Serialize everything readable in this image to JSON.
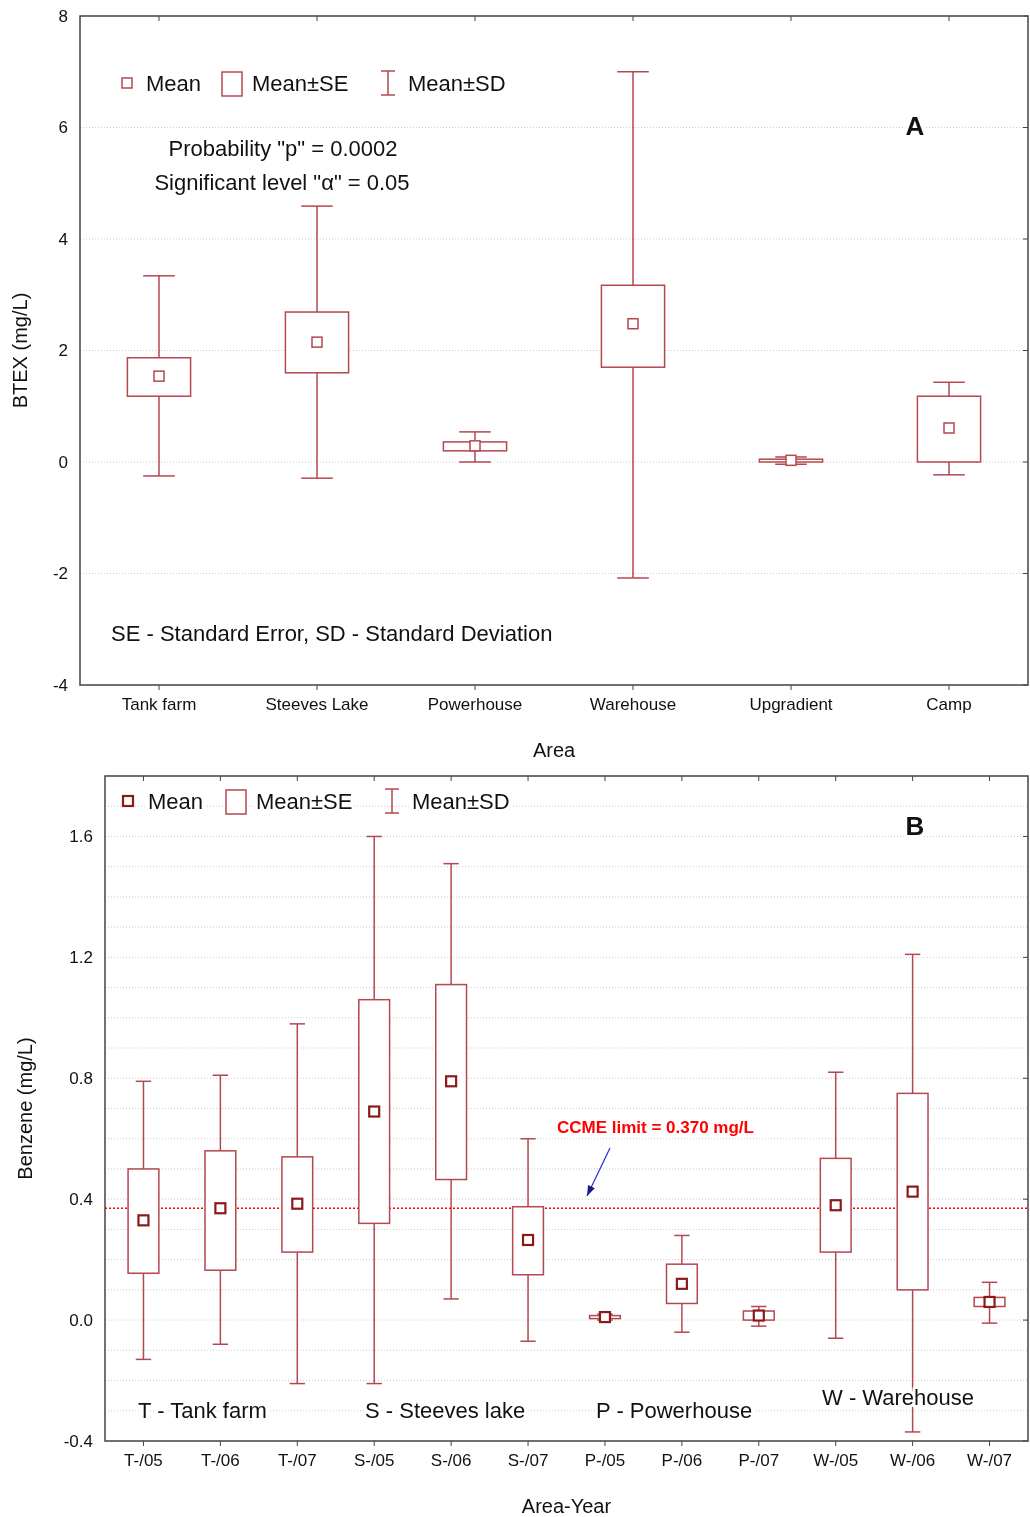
{
  "chart_data": [
    {
      "type": "box",
      "xlabel": "Area",
      "ylabel": "BTEX (mg/L)",
      "categories": [
        "Tank farm",
        "Steeves Lake",
        "Powerhouse",
        "Warehouse",
        "Upgradient",
        "Camp"
      ],
      "color": "#b5474f",
      "ylim": [
        -4,
        8
      ],
      "yticks": [
        -4,
        -2,
        0,
        2,
        4,
        6,
        8
      ],
      "grid": "y",
      "boxes": [
        {
          "low": -0.25,
          "q1": 1.18,
          "q3": 1.87,
          "high": 3.34,
          "mean": 1.54
        },
        {
          "low": -0.29,
          "q1": 1.6,
          "q3": 2.69,
          "high": 4.59,
          "mean": 2.15
        },
        {
          "low": 0.0,
          "q1": 0.2,
          "q3": 0.36,
          "high": 0.54,
          "mean": 0.29
        },
        {
          "low": -2.08,
          "q1": 1.7,
          "q3": 3.17,
          "high": 7.0,
          "mean": 2.48
        },
        {
          "low": -0.04,
          "q1": 0.0,
          "q3": 0.05,
          "high": 0.09,
          "mean": 0.03
        },
        {
          "low": -0.23,
          "q1": 0.0,
          "q3": 1.18,
          "high": 1.43,
          "mean": 0.61
        }
      ],
      "annotations": [
        "Mean",
        "Mean±SE",
        "Mean±SD",
        "Probability \"p\" = 0.0002",
        "Significant level \"α\" = 0.05",
        "A",
        "SE - Standard Error,  SD - Standard Deviation"
      ]
    },
    {
      "type": "box",
      "xlabel": "Area-Year",
      "ylabel": "Benzene (mg/L)",
      "categories": [
        "T-/05",
        "T-/06",
        "T-/07",
        "S-/05",
        "S-/06",
        "S-/07",
        "P-/05",
        "P-/06",
        "P-/07",
        "W-/05",
        "W-/06",
        "W-/07"
      ],
      "color": "#b5474f",
      "ylim": [
        -0.4,
        1.8
      ],
      "yticks": [
        -0.4,
        {
          "value": -0.3,
          "label": null
        },
        {
          "value": -0.2,
          "label": null
        },
        {
          "value": -0.1,
          "label": null
        },
        {
          "value": 0,
          "label": "0.0"
        },
        {
          "value": 0.1,
          "label": null
        },
        {
          "value": 0.2,
          "label": null
        },
        {
          "value": 0.3,
          "label": null
        },
        0.4,
        {
          "value": 0.5,
          "label": null
        },
        {
          "value": 0.6,
          "label": null
        },
        {
          "value": 0.7,
          "label": null
        },
        0.8,
        {
          "value": 0.9,
          "label": null
        },
        {
          "value": 1.0,
          "label": null
        },
        {
          "value": 1.1,
          "label": null
        },
        1.2,
        {
          "value": 1.3,
          "label": null
        },
        {
          "value": 1.4,
          "label": null
        },
        {
          "value": 1.5,
          "label": null
        },
        1.6,
        {
          "value": 1.7,
          "label": null
        },
        {
          "value": 1.8,
          "label": null
        }
      ],
      "grid": "y",
      "boxes": [
        {
          "low": -0.13,
          "q1": 0.155,
          "q3": 0.5,
          "high": 0.79,
          "mean": 0.33
        },
        {
          "low": -0.08,
          "q1": 0.165,
          "q3": 0.56,
          "high": 0.81,
          "mean": 0.37
        },
        {
          "low": -0.21,
          "q1": 0.225,
          "q3": 0.54,
          "high": 0.98,
          "mean": 0.385
        },
        {
          "low": -0.21,
          "q1": 0.32,
          "q3": 1.06,
          "high": 1.6,
          "mean": 0.69
        },
        {
          "low": 0.07,
          "q1": 0.465,
          "q3": 1.11,
          "high": 1.51,
          "mean": 0.79
        },
        {
          "low": -0.07,
          "q1": 0.15,
          "q3": 0.375,
          "high": 0.6,
          "mean": 0.265
        },
        {
          "low": 0.0,
          "q1": 0.005,
          "q3": 0.015,
          "high": 0.02,
          "mean": 0.01
        },
        {
          "low": -0.04,
          "q1": 0.055,
          "q3": 0.185,
          "high": 0.28,
          "mean": 0.12
        },
        {
          "low": -0.02,
          "q1": 0.0,
          "q3": 0.03,
          "high": 0.045,
          "mean": 0.015
        },
        {
          "low": -0.06,
          "q1": 0.225,
          "q3": 0.535,
          "high": 0.82,
          "mean": 0.38
        },
        {
          "low": -0.37,
          "q1": 0.1,
          "q3": 0.75,
          "high": 1.21,
          "mean": 0.425
        },
        {
          "low": -0.01,
          "q1": 0.045,
          "q3": 0.075,
          "high": 0.125,
          "mean": 0.06
        }
      ],
      "ref_lines": [
        {
          "axis": "y",
          "value": 0.37,
          "label": "CCME limit = 0.370 mg/L",
          "color": "#ff0000",
          "line_style": "dotted"
        }
      ],
      "annotations": [
        "Mean",
        "Mean±SE",
        "Mean±SD",
        "B",
        "T - Tank farm",
        "S - Steeves lake",
        "P - Powerhouse",
        "W - Warehouse"
      ]
    }
  ]
}
